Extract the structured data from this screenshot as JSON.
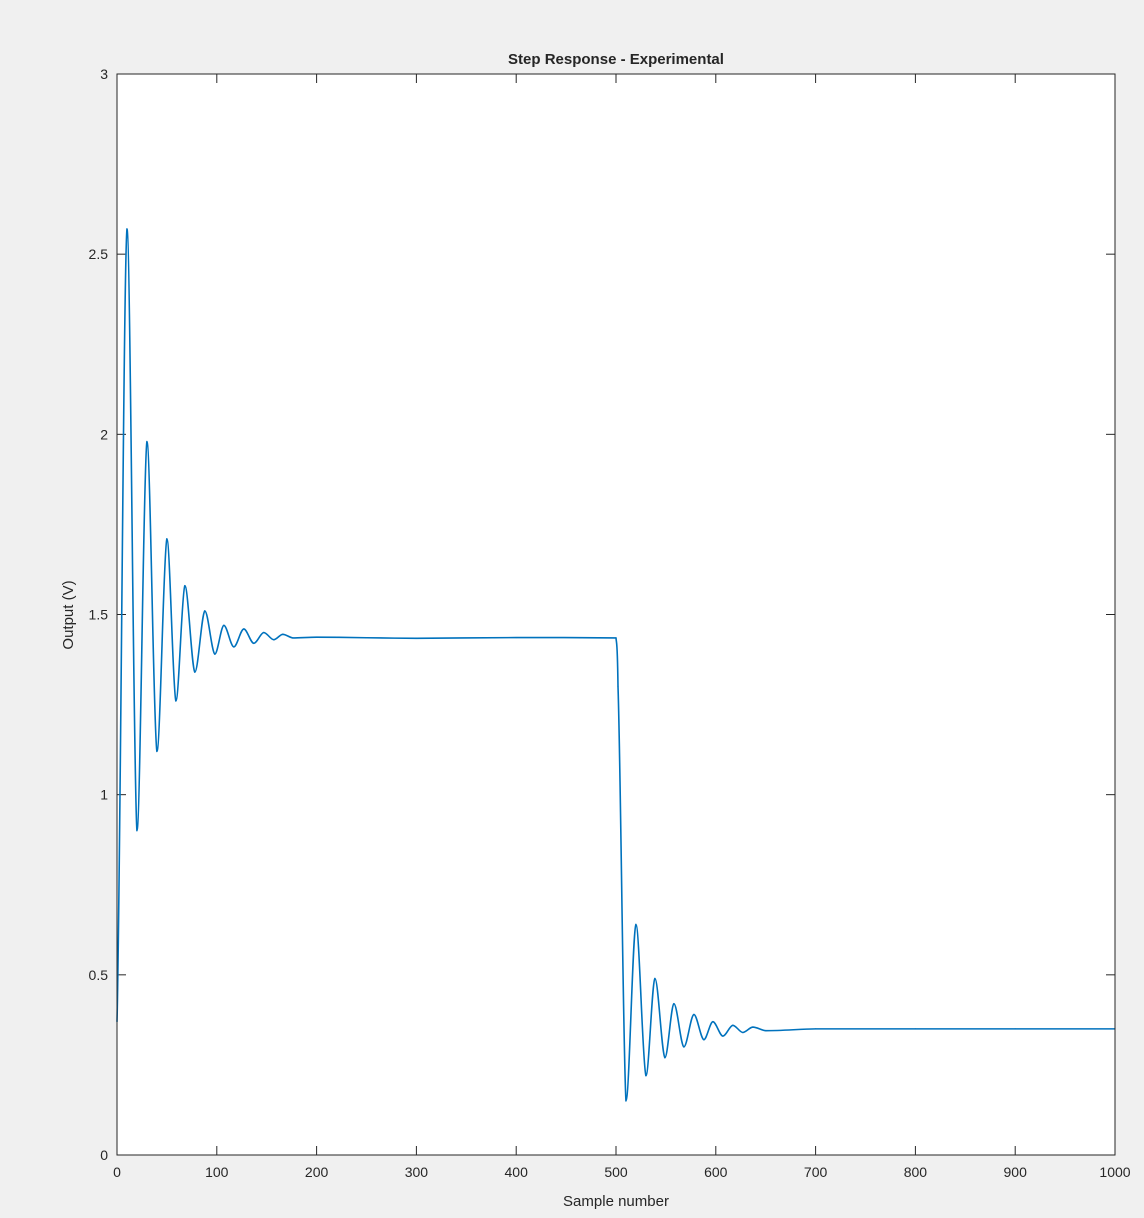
{
  "chart_data": {
    "type": "line",
    "title": "Step Response - Experimental",
    "xlabel": "Sample number",
    "ylabel": "Output (V)",
    "xlim": [
      0,
      1000
    ],
    "ylim": [
      0,
      3
    ],
    "xticks": [
      0,
      100,
      200,
      300,
      400,
      500,
      600,
      700,
      800,
      900,
      1000
    ],
    "xtick_labels": [
      "0",
      "100",
      "200",
      "300",
      "400",
      "500",
      "600",
      "700",
      "800",
      "900",
      "1000"
    ],
    "yticks": [
      0,
      0.5,
      1,
      1.5,
      2,
      2.5,
      3
    ],
    "ytick_labels": [
      "0",
      "0.5",
      "1",
      "1.5",
      "2",
      "2.5",
      "3"
    ],
    "grid": false,
    "legend": "none",
    "series": [
      {
        "color": "#0072bd",
        "x": [
          0,
          10,
          20,
          30,
          40,
          50,
          59,
          68,
          78,
          88,
          98,
          107,
          117,
          127,
          137,
          147,
          157,
          166,
          176,
          200,
          300,
          400,
          500,
          502,
          510,
          520,
          530,
          539,
          549,
          558,
          568,
          578,
          588,
          597,
          607,
          617,
          627,
          637,
          650,
          700,
          800,
          900,
          1000
        ],
        "y": [
          0.37,
          2.57,
          0.9,
          1.98,
          1.12,
          1.71,
          1.26,
          1.58,
          1.34,
          1.51,
          1.39,
          1.47,
          1.41,
          1.46,
          1.42,
          1.45,
          1.43,
          1.445,
          1.435,
          1.437,
          1.434,
          1.436,
          1.435,
          1.3,
          0.15,
          0.64,
          0.22,
          0.49,
          0.27,
          0.42,
          0.3,
          0.39,
          0.32,
          0.37,
          0.33,
          0.36,
          0.34,
          0.355,
          0.345,
          0.35,
          0.35,
          0.35,
          0.35
        ]
      }
    ]
  }
}
